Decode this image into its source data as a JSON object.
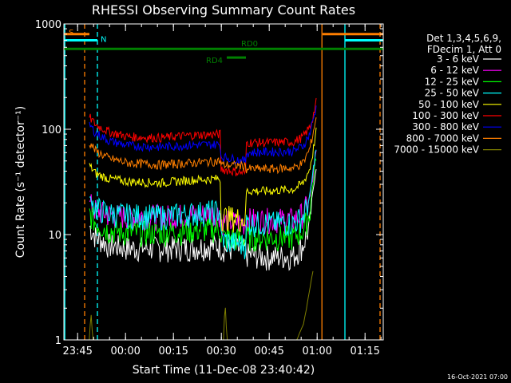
{
  "chart_data": {
    "type": "line",
    "title": "RHESSI Observing Summary Count Rates",
    "xlabel": "Start Time (11-Dec-08 23:40:42)",
    "ylabel": "Count Rate (s⁻¹ detector⁻¹)",
    "yscale": "log",
    "ylim": [
      1,
      1000
    ],
    "xlim_minutes": [
      0,
      100
    ],
    "x_ticks": [
      {
        "label": "23:45",
        "minutes": 4.3
      },
      {
        "label": "00:00",
        "minutes": 19.3
      },
      {
        "label": "00:15",
        "minutes": 34.3
      },
      {
        "label": "00:30",
        "minutes": 49.3
      },
      {
        "label": "00:45",
        "minutes": 64.3
      },
      {
        "label": "01:00",
        "minutes": 79.3
      },
      {
        "label": "01:15",
        "minutes": 94.3
      }
    ],
    "y_ticks": [
      {
        "label": "1",
        "value": 1
      },
      {
        "label": "10",
        "value": 10
      },
      {
        "label": "100",
        "value": 100
      },
      {
        "label": "1000",
        "value": 1000
      }
    ],
    "legend": {
      "header": [
        "Det 1,3,4,5,6,9,",
        "FDecim 1, Att 0"
      ],
      "position": "right"
    },
    "series": [
      {
        "name": "3 - 6 keV",
        "color": "#ffffff",
        "values": [
          [
            8,
            12
          ],
          [
            10,
            9.5
          ],
          [
            14,
            8
          ],
          [
            20,
            7.5
          ],
          [
            30,
            7.5
          ],
          [
            40,
            7.6
          ],
          [
            49,
            8
          ],
          [
            49.1,
            7.5
          ],
          [
            57,
            7.2
          ],
          [
            57.1,
            6.5
          ],
          [
            64,
            6.2
          ],
          [
            72,
            6.3
          ],
          [
            75,
            8
          ],
          [
            77,
            12
          ],
          [
            78,
            25
          ],
          [
            79,
            45
          ]
        ]
      },
      {
        "name": "6 - 12 keV",
        "color": "#ff00ff",
        "values": [
          [
            8,
            20
          ],
          [
            10,
            17
          ],
          [
            14,
            15.5
          ],
          [
            20,
            15
          ],
          [
            30,
            15
          ],
          [
            40,
            15.5
          ],
          [
            49,
            16
          ],
          [
            49.1,
            13.5
          ],
          [
            57,
            13
          ],
          [
            57.1,
            14
          ],
          [
            64,
            14
          ],
          [
            72,
            14
          ],
          [
            75,
            16
          ],
          [
            77,
            22
          ],
          [
            78,
            35
          ],
          [
            79,
            60
          ]
        ]
      },
      {
        "name": "12 - 25 keV",
        "color": "#00ff00",
        "values": [
          [
            8,
            16
          ],
          [
            10,
            13
          ],
          [
            14,
            11
          ],
          [
            20,
            10.5
          ],
          [
            30,
            10.5
          ],
          [
            40,
            11
          ],
          [
            49,
            11.5
          ],
          [
            49.1,
            9.5
          ],
          [
            57,
            9
          ],
          [
            57.1,
            9.5
          ],
          [
            64,
            9.5
          ],
          [
            72,
            9.5
          ],
          [
            75,
            11
          ],
          [
            77,
            16
          ],
          [
            78,
            30
          ],
          [
            79,
            55
          ]
        ]
      },
      {
        "name": "25 - 50 keV",
        "color": "#00ffff",
        "values": [
          [
            8,
            22
          ],
          [
            10,
            18
          ],
          [
            14,
            16
          ],
          [
            20,
            15.5
          ],
          [
            30,
            15
          ],
          [
            40,
            16
          ],
          [
            49,
            17
          ],
          [
            49.1,
            9
          ],
          [
            57,
            8
          ],
          [
            57.1,
            13
          ],
          [
            64,
            13
          ],
          [
            72,
            13
          ],
          [
            75,
            15
          ],
          [
            77,
            22
          ],
          [
            78,
            38
          ],
          [
            79,
            65
          ]
        ]
      },
      {
        "name": "50 - 100 keV",
        "color": "#ffff00",
        "values": [
          [
            8,
            45
          ],
          [
            10,
            38
          ],
          [
            14,
            34
          ],
          [
            20,
            32
          ],
          [
            30,
            31
          ],
          [
            40,
            33
          ],
          [
            49,
            34
          ],
          [
            49.1,
            15
          ],
          [
            57,
            14
          ],
          [
            57.1,
            26
          ],
          [
            64,
            26
          ],
          [
            72,
            27
          ],
          [
            75,
            31
          ],
          [
            77,
            42
          ],
          [
            78,
            60
          ],
          [
            79,
            95
          ]
        ]
      },
      {
        "name": "100 - 300 keV",
        "color": "#ff0000",
        "values": [
          [
            8,
            130
          ],
          [
            10,
            110
          ],
          [
            14,
            95
          ],
          [
            20,
            85
          ],
          [
            30,
            83
          ],
          [
            40,
            88
          ],
          [
            49,
            90
          ],
          [
            49.1,
            42
          ],
          [
            57,
            38
          ],
          [
            57.1,
            75
          ],
          [
            64,
            75
          ],
          [
            72,
            76
          ],
          [
            75,
            85
          ],
          [
            77,
            105
          ],
          [
            78,
            130
          ],
          [
            79,
            180
          ]
        ]
      },
      {
        "name": "300 - 800 keV",
        "color": "#0000ff",
        "values": [
          [
            8,
            110
          ],
          [
            10,
            92
          ],
          [
            14,
            78
          ],
          [
            20,
            70
          ],
          [
            30,
            68
          ],
          [
            40,
            71
          ],
          [
            49,
            72
          ],
          [
            49.1,
            55
          ],
          [
            57,
            50
          ],
          [
            57.1,
            60
          ],
          [
            64,
            61
          ],
          [
            72,
            62
          ],
          [
            75,
            70
          ],
          [
            77,
            90
          ],
          [
            78,
            120
          ],
          [
            79,
            160
          ]
        ]
      },
      {
        "name": "800 - 7000 keV",
        "color": "#ff7f00",
        "values": [
          [
            8,
            75
          ],
          [
            10,
            62
          ],
          [
            14,
            53
          ],
          [
            20,
            48
          ],
          [
            30,
            46
          ],
          [
            40,
            48
          ],
          [
            49,
            50
          ],
          [
            49.1,
            46
          ],
          [
            57,
            45
          ],
          [
            57.1,
            42
          ],
          [
            64,
            42
          ],
          [
            72,
            43
          ],
          [
            75,
            48
          ],
          [
            77,
            65
          ],
          [
            78,
            90
          ],
          [
            79,
            130
          ]
        ]
      },
      {
        "name": "7000 - 15000 keV",
        "color": "#808000",
        "values": [
          [
            0.5,
            1
          ],
          [
            8,
            1
          ],
          [
            8.5,
            1.8
          ],
          [
            9,
            1
          ],
          [
            50,
            1
          ],
          [
            50.5,
            2.2
          ],
          [
            51,
            1
          ],
          [
            73,
            1
          ],
          [
            75,
            1.4
          ],
          [
            76,
            2
          ],
          [
            77,
            3
          ],
          [
            78,
            4.5
          ]
        ]
      }
    ],
    "annotations": [
      {
        "text": "S",
        "color": "#ff7f00",
        "segments": [
          [
            0,
            8
          ],
          [
            81,
            100
          ]
        ],
        "value": 800
      },
      {
        "text": "N",
        "color": "#00ffff",
        "segments": [
          [
            0,
            10.5
          ],
          [
            88,
            100
          ]
        ],
        "value": 700
      },
      {
        "text": "RD0",
        "color": "#008000",
        "segments": [
          [
            0,
            100
          ]
        ],
        "value": 580
      },
      {
        "text": "RD4",
        "color": "#008000",
        "segments": [
          [
            51,
            57
          ]
        ],
        "value": 480
      }
    ],
    "vertical_markers": [
      {
        "minutes": 0.3,
        "color": "#00ffff",
        "style": "solid"
      },
      {
        "minutes": 6.5,
        "color": "#ff7f00",
        "style": "dashed"
      },
      {
        "minutes": 10.5,
        "color": "#00ffff",
        "style": "dashed"
      },
      {
        "minutes": 80.8,
        "color": "#ff7f00",
        "style": "solid"
      },
      {
        "minutes": 88.0,
        "color": "#00ffff",
        "style": "solid"
      },
      {
        "minutes": 99.0,
        "color": "#ff7f00",
        "style": "dashed"
      }
    ],
    "grid": false
  },
  "footer": {
    "timestamp": "16-Oct-2021 07:00"
  }
}
